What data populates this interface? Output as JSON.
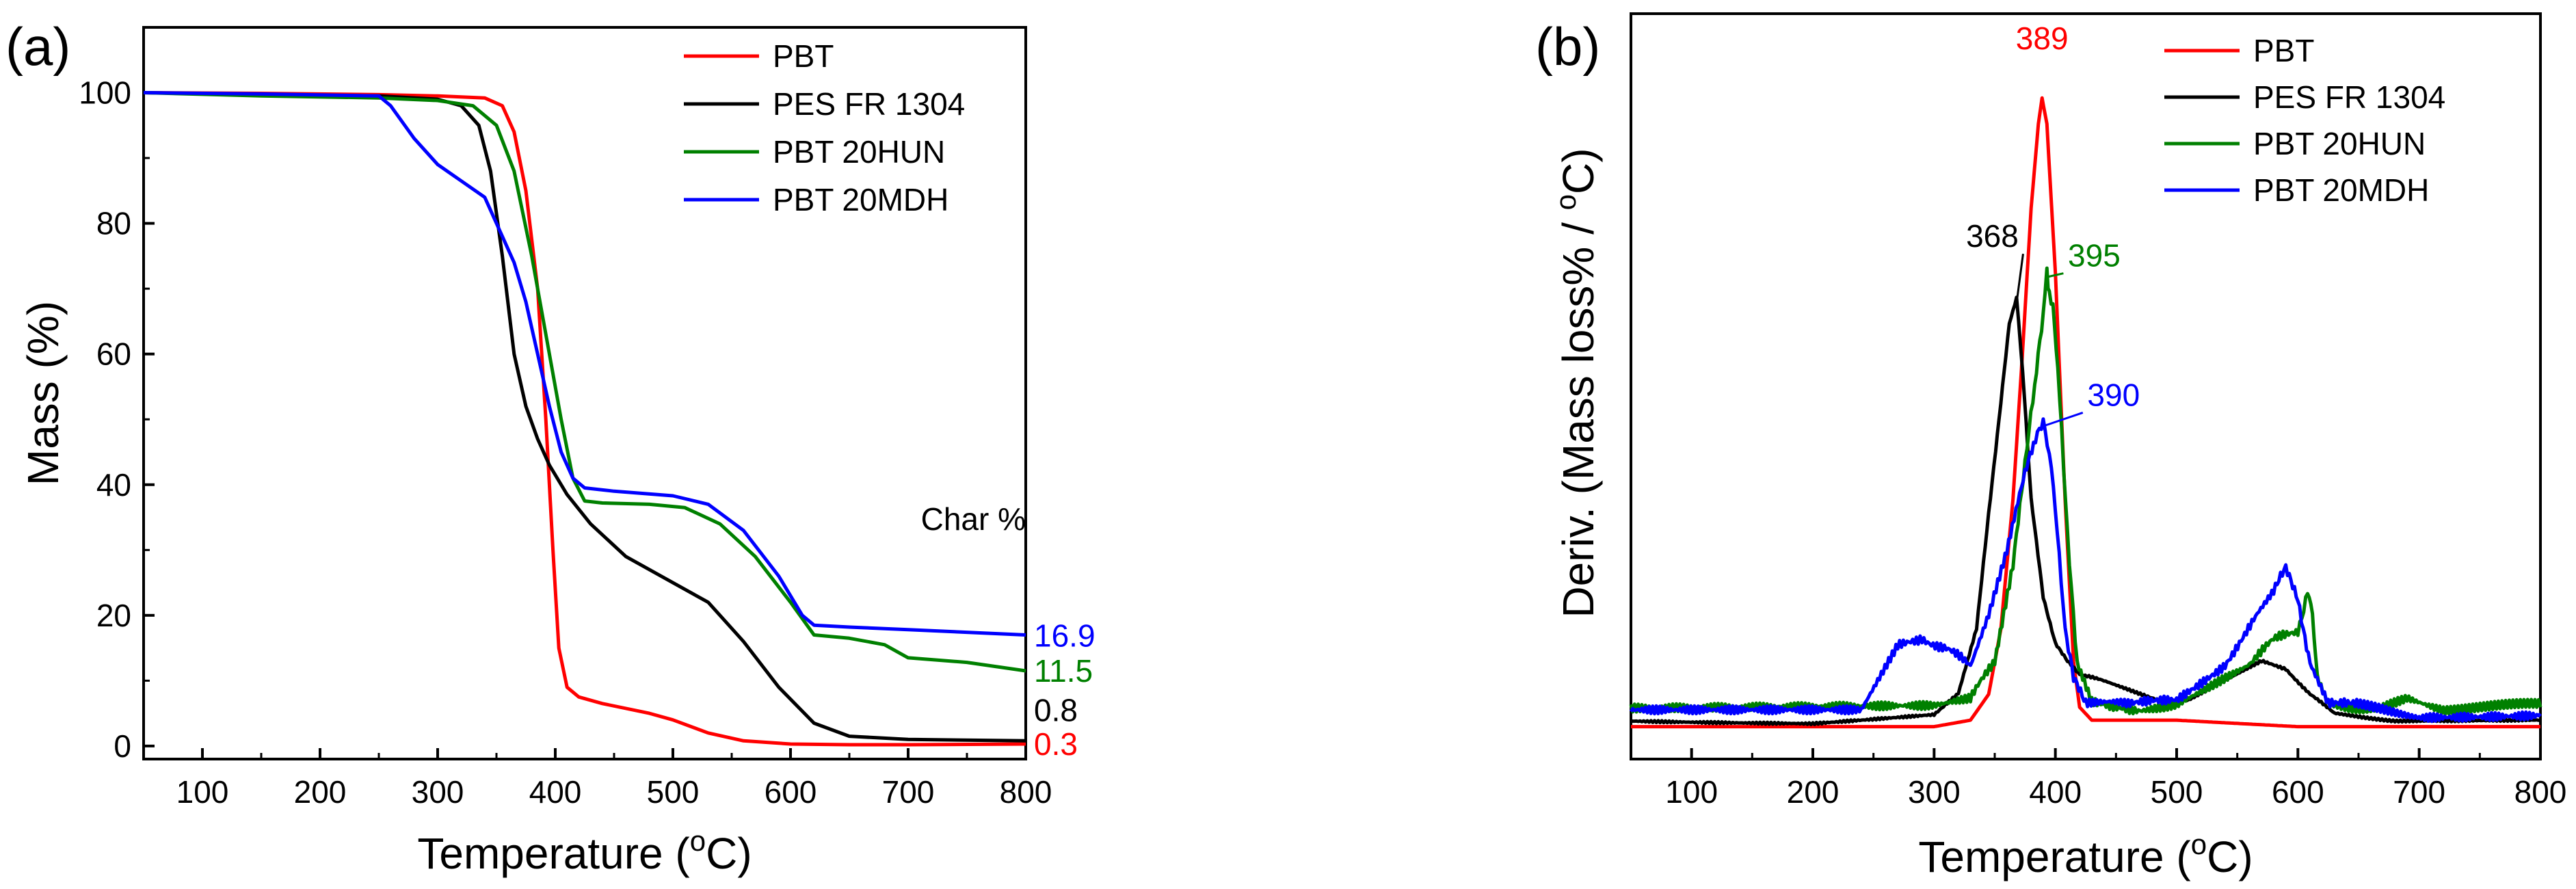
{
  "colors": {
    "red": "#ff0000",
    "black": "#000000",
    "green": "#008000",
    "blue": "#0000ff"
  },
  "chart_data": [
    {
      "type": "line",
      "panel_label": "(a)",
      "xlabel": "Temperature (",
      "xlabel_sup": "o",
      "xlabel_end": "C)",
      "ylabel": "Mass (%)",
      "xlim": [
        50,
        800
      ],
      "ylim": [
        -2,
        110
      ],
      "xticks": [
        100,
        200,
        300,
        400,
        500,
        600,
        700,
        800
      ],
      "yticks": [
        0,
        20,
        40,
        60,
        80,
        100
      ],
      "legend": [
        "PBT",
        "PES FR 1304",
        "PBT 20HUN",
        "PBT 20MDH"
      ],
      "char_header": "Char %",
      "char_values": [
        {
          "value": "16.9",
          "color": "#0000ff",
          "y": 16.9
        },
        {
          "value": "11.5",
          "color": "#008000",
          "y": 11.5
        },
        {
          "value": "0.8",
          "color": "#000000",
          "y": 5.5
        },
        {
          "value": "0.3",
          "color": "#ff0000",
          "y": 0.3
        }
      ],
      "series": [
        {
          "name": "PBT",
          "color": "#ff0000",
          "x": [
            50,
            150,
            250,
            300,
            340,
            355,
            365,
            375,
            385,
            392,
            398,
            403,
            410,
            420,
            440,
            480,
            500,
            530,
            560,
            600,
            650,
            700,
            800
          ],
          "y": [
            100,
            99.9,
            99.7,
            99.5,
            99.2,
            98,
            94,
            85,
            70,
            50,
            30,
            15,
            9,
            7.5,
            6.5,
            5,
            4,
            2,
            0.8,
            0.3,
            0.2,
            0.2,
            0.3
          ]
        },
        {
          "name": "PES FR 1304",
          "color": "#000000",
          "x": [
            50,
            150,
            250,
            300,
            320,
            335,
            345,
            355,
            365,
            375,
            385,
            395,
            410,
            430,
            460,
            500,
            530,
            560,
            590,
            620,
            650,
            700,
            800
          ],
          "y": [
            100,
            99.7,
            99.5,
            99,
            98,
            95,
            88,
            75,
            60,
            52,
            47,
            43,
            38.5,
            34,
            29,
            25,
            22,
            16,
            9,
            3.5,
            1.5,
            1,
            0.8
          ]
        },
        {
          "name": "PBT 20HUN",
          "color": "#008000",
          "x": [
            50,
            150,
            250,
            300,
            330,
            350,
            365,
            380,
            395,
            405,
            415,
            425,
            440,
            480,
            510,
            540,
            570,
            600,
            620,
            650,
            680,
            700,
            750,
            800
          ],
          "y": [
            100,
            99.5,
            99.2,
            98.8,
            98,
            95,
            88,
            75,
            60,
            50,
            41,
            37.5,
            37.2,
            37,
            36.5,
            34,
            29,
            22,
            17,
            16.5,
            15.5,
            13.5,
            12.8,
            11.5
          ]
        },
        {
          "name": "PBT 20MDH",
          "color": "#0000ff",
          "x": [
            50,
            150,
            250,
            260,
            280,
            300,
            320,
            340,
            355,
            365,
            375,
            385,
            395,
            405,
            415,
            425,
            450,
            500,
            530,
            560,
            590,
            610,
            620,
            650,
            700,
            800
          ],
          "y": [
            100,
            99.8,
            99.5,
            98,
            93,
            89,
            86.5,
            84,
            78,
            74,
            68,
            60,
            52,
            45,
            41,
            39.5,
            39,
            38.3,
            37,
            33,
            26,
            20,
            18.5,
            18.2,
            17.8,
            17
          ]
        }
      ]
    },
    {
      "type": "line",
      "panel_label": "(b)",
      "xlabel": "Temperature (",
      "xlabel_sup": "o",
      "xlabel_end": "C)",
      "ylabel": "Deriv. (Mass loss% / ",
      "ylabel_sup": "o",
      "ylabel_end": "C)",
      "xlim": [
        50,
        800
      ],
      "ylim": [
        0,
        1.15
      ],
      "xticks": [
        100,
        200,
        300,
        400,
        500,
        600,
        700,
        800
      ],
      "legend": [
        "PBT",
        "PES FR 1304",
        "PBT 20HUN",
        "PBT 20MDH"
      ],
      "annotations": [
        {
          "text": "389",
          "color": "#ff0000",
          "x": 389,
          "y": 1.095
        },
        {
          "text": "368",
          "color": "#000000",
          "x": 348,
          "y": 0.79
        },
        {
          "text": "395",
          "color": "#008000",
          "x": 432,
          "y": 0.76
        },
        {
          "text": "390",
          "color": "#0000ff",
          "x": 448,
          "y": 0.545
        }
      ],
      "series": [
        {
          "name": "PBT",
          "color": "#ff0000",
          "x": [
            50,
            300,
            330,
            345,
            355,
            365,
            372,
            380,
            386,
            389,
            393,
            400,
            408,
            415,
            420,
            430,
            500,
            600,
            700,
            800
          ],
          "y": [
            0.05,
            0.05,
            0.06,
            0.1,
            0.2,
            0.4,
            0.6,
            0.85,
            0.98,
            1.02,
            0.98,
            0.75,
            0.4,
            0.15,
            0.08,
            0.06,
            0.06,
            0.05,
            0.05,
            0.05
          ]
        },
        {
          "name": "PES FR 1304",
          "color": "#000000",
          "x": [
            50,
            200,
            300,
            320,
            335,
            345,
            355,
            362,
            368,
            373,
            380,
            390,
            400,
            410,
            420,
            440,
            470,
            490,
            510,
            540,
            570,
            590,
            610,
            630,
            680,
            800
          ],
          "y": [
            0.06,
            0.055,
            0.07,
            0.1,
            0.2,
            0.38,
            0.55,
            0.67,
            0.71,
            0.6,
            0.4,
            0.25,
            0.18,
            0.15,
            0.13,
            0.12,
            0.1,
            0.09,
            0.09,
            0.12,
            0.15,
            0.14,
            0.1,
            0.07,
            0.06,
            0.06
          ]
        },
        {
          "name": "PBT 20HUN",
          "color": "#008000",
          "x": [
            50,
            300,
            330,
            350,
            365,
            375,
            383,
            390,
            393,
            395,
            398,
            402,
            410,
            418,
            430,
            470,
            500,
            530,
            560,
            580,
            600,
            608,
            612,
            616,
            625,
            660,
            690,
            720,
            800
          ],
          "y": [
            0.08,
            0.08,
            0.09,
            0.15,
            0.3,
            0.45,
            0.58,
            0.68,
            0.75,
            0.72,
            0.7,
            0.6,
            0.35,
            0.15,
            0.09,
            0.08,
            0.09,
            0.12,
            0.15,
            0.18,
            0.2,
            0.26,
            0.23,
            0.12,
            0.08,
            0.08,
            0.1,
            0.08,
            0.08
          ]
        },
        {
          "name": "PBT 20MDH",
          "color": "#0000ff",
          "x": [
            50,
            240,
            255,
            270,
            290,
            310,
            330,
            345,
            360,
            372,
            382,
            390,
            395,
            400,
            408,
            415,
            425,
            460,
            500,
            540,
            565,
            580,
            590,
            600,
            610,
            625,
            650,
            700,
            800
          ],
          "y": [
            0.07,
            0.07,
            0.12,
            0.17,
            0.19,
            0.17,
            0.14,
            0.22,
            0.32,
            0.42,
            0.48,
            0.52,
            0.48,
            0.38,
            0.2,
            0.12,
            0.09,
            0.08,
            0.09,
            0.15,
            0.22,
            0.26,
            0.29,
            0.25,
            0.15,
            0.09,
            0.08,
            0.07,
            0.07
          ]
        }
      ]
    }
  ]
}
